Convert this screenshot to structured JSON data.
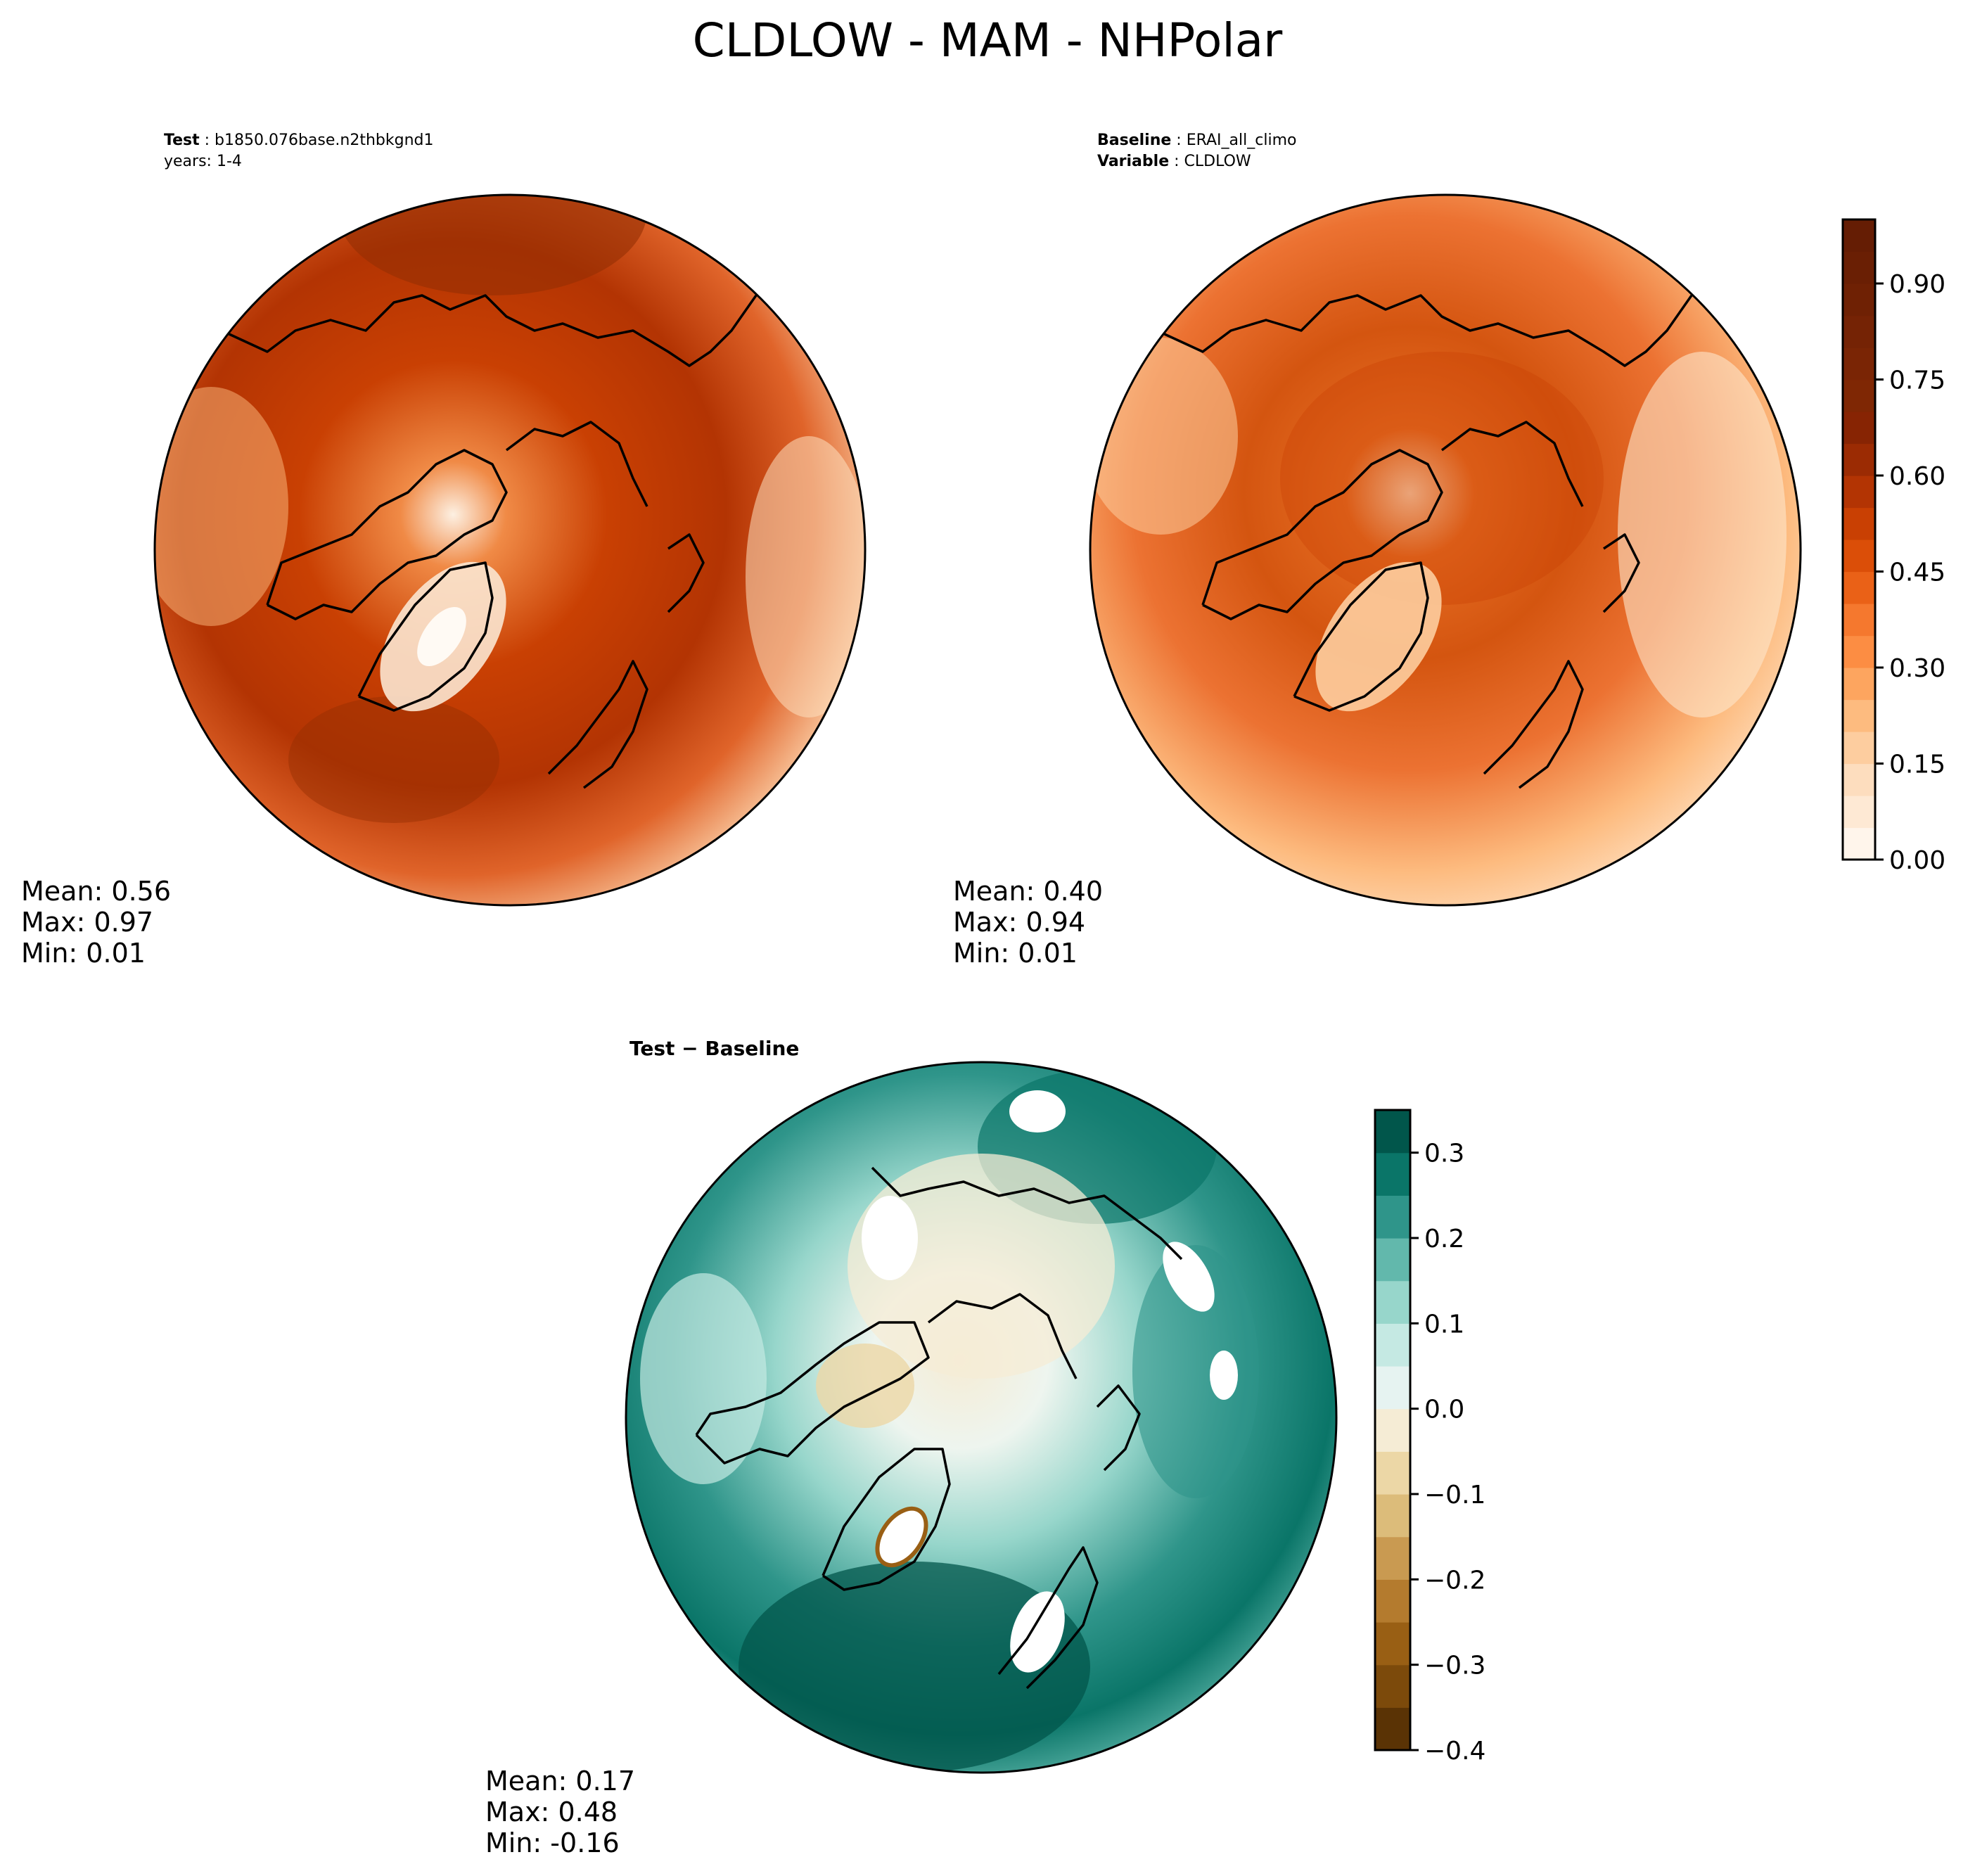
{
  "title": "CLDLOW - MAM - NHPolar",
  "panels": [
    {
      "header": [
        {
          "key": "Test",
          "value": "b1850.076base.n2thbkgnd1"
        },
        {
          "key": "",
          "value": "years: 1-4"
        }
      ],
      "stats": {
        "mean": "Mean:  0.56",
        "max": "Max:  0.97",
        "min": "Min:  0.01"
      }
    },
    {
      "header": [
        {
          "key": "Baseline",
          "value": "ERAI_all_climo"
        },
        {
          "key": "Variable",
          "value": "CLDLOW"
        }
      ],
      "stats": {
        "mean": "Mean:  0.40",
        "max": "Max:  0.94",
        "min": "Min:  0.01"
      }
    },
    {
      "header": [
        {
          "key": "Test − Baseline",
          "value": ""
        }
      ],
      "stats": {
        "mean": "Mean:  0.17",
        "max": "Max:  0.48",
        "min": "Min: -0.16"
      }
    }
  ],
  "colorbars": [
    {
      "colormap": "Oranges",
      "range": [
        0.0,
        1.0
      ],
      "levels": 20,
      "ticks": [
        0.0,
        0.15,
        0.3,
        0.45,
        0.6,
        0.75,
        0.9
      ],
      "tick_labels": [
        "0.00",
        "0.15",
        "0.30",
        "0.45",
        "0.60",
        "0.75",
        "0.90"
      ],
      "colors": [
        "#fff5eb",
        "#fee9d4",
        "#fdddbe",
        "#fdcd9f",
        "#fdbb7f",
        "#fda55f",
        "#fc8d43",
        "#f5782e",
        "#ea6117",
        "#db4e08",
        "#c94003",
        "#b33403",
        "#9b2b03",
        "#872403",
        "#7f2704",
        "#7a2505",
        "#752305",
        "#6f2104",
        "#6a1f04",
        "#651d04"
      ]
    },
    {
      "colormap": "BrBG",
      "range": [
        -0.4,
        0.35
      ],
      "levels": 15,
      "ticks": [
        -0.4,
        -0.3,
        -0.2,
        -0.1,
        0.0,
        0.1,
        0.2,
        0.3
      ],
      "tick_labels": [
        "−0.4",
        "−0.3",
        "−0.2",
        "−0.1",
        "0.0",
        "0.1",
        "0.2",
        "0.3"
      ],
      "colors": [
        "#5a3305",
        "#7c4a0b",
        "#995f14",
        "#b47b2e",
        "#c99a51",
        "#dcbc7a",
        "#ecd7a6",
        "#f5ecd5",
        "#e6f3f1",
        "#c5e9e3",
        "#97d6cb",
        "#62b8ac",
        "#2f958a",
        "#0a7568",
        "#01564b"
      ]
    }
  ],
  "chart_data": [
    {
      "type": "heatmap",
      "projection": "north-polar-stereographic",
      "variable": "CLDLOW",
      "header": "Test: b1850.076base.n2thbkgnd1 / years: 1-4",
      "stats": {
        "mean": 0.56,
        "max": 0.97,
        "min": 0.01
      },
      "colorbar_range": [
        0.0,
        1.0
      ]
    },
    {
      "type": "heatmap",
      "projection": "north-polar-stereographic",
      "variable": "CLDLOW",
      "header": "Baseline: ERAI_all_climo / Variable: CLDLOW",
      "stats": {
        "mean": 0.4,
        "max": 0.94,
        "min": 0.01
      },
      "colorbar_range": [
        0.0,
        1.0
      ]
    },
    {
      "type": "heatmap",
      "projection": "north-polar-stereographic",
      "variable": "CLDLOW",
      "header": "Test − Baseline",
      "stats": {
        "mean": 0.17,
        "max": 0.48,
        "min": -0.16
      },
      "colorbar_range": [
        -0.4,
        0.35
      ]
    }
  ]
}
